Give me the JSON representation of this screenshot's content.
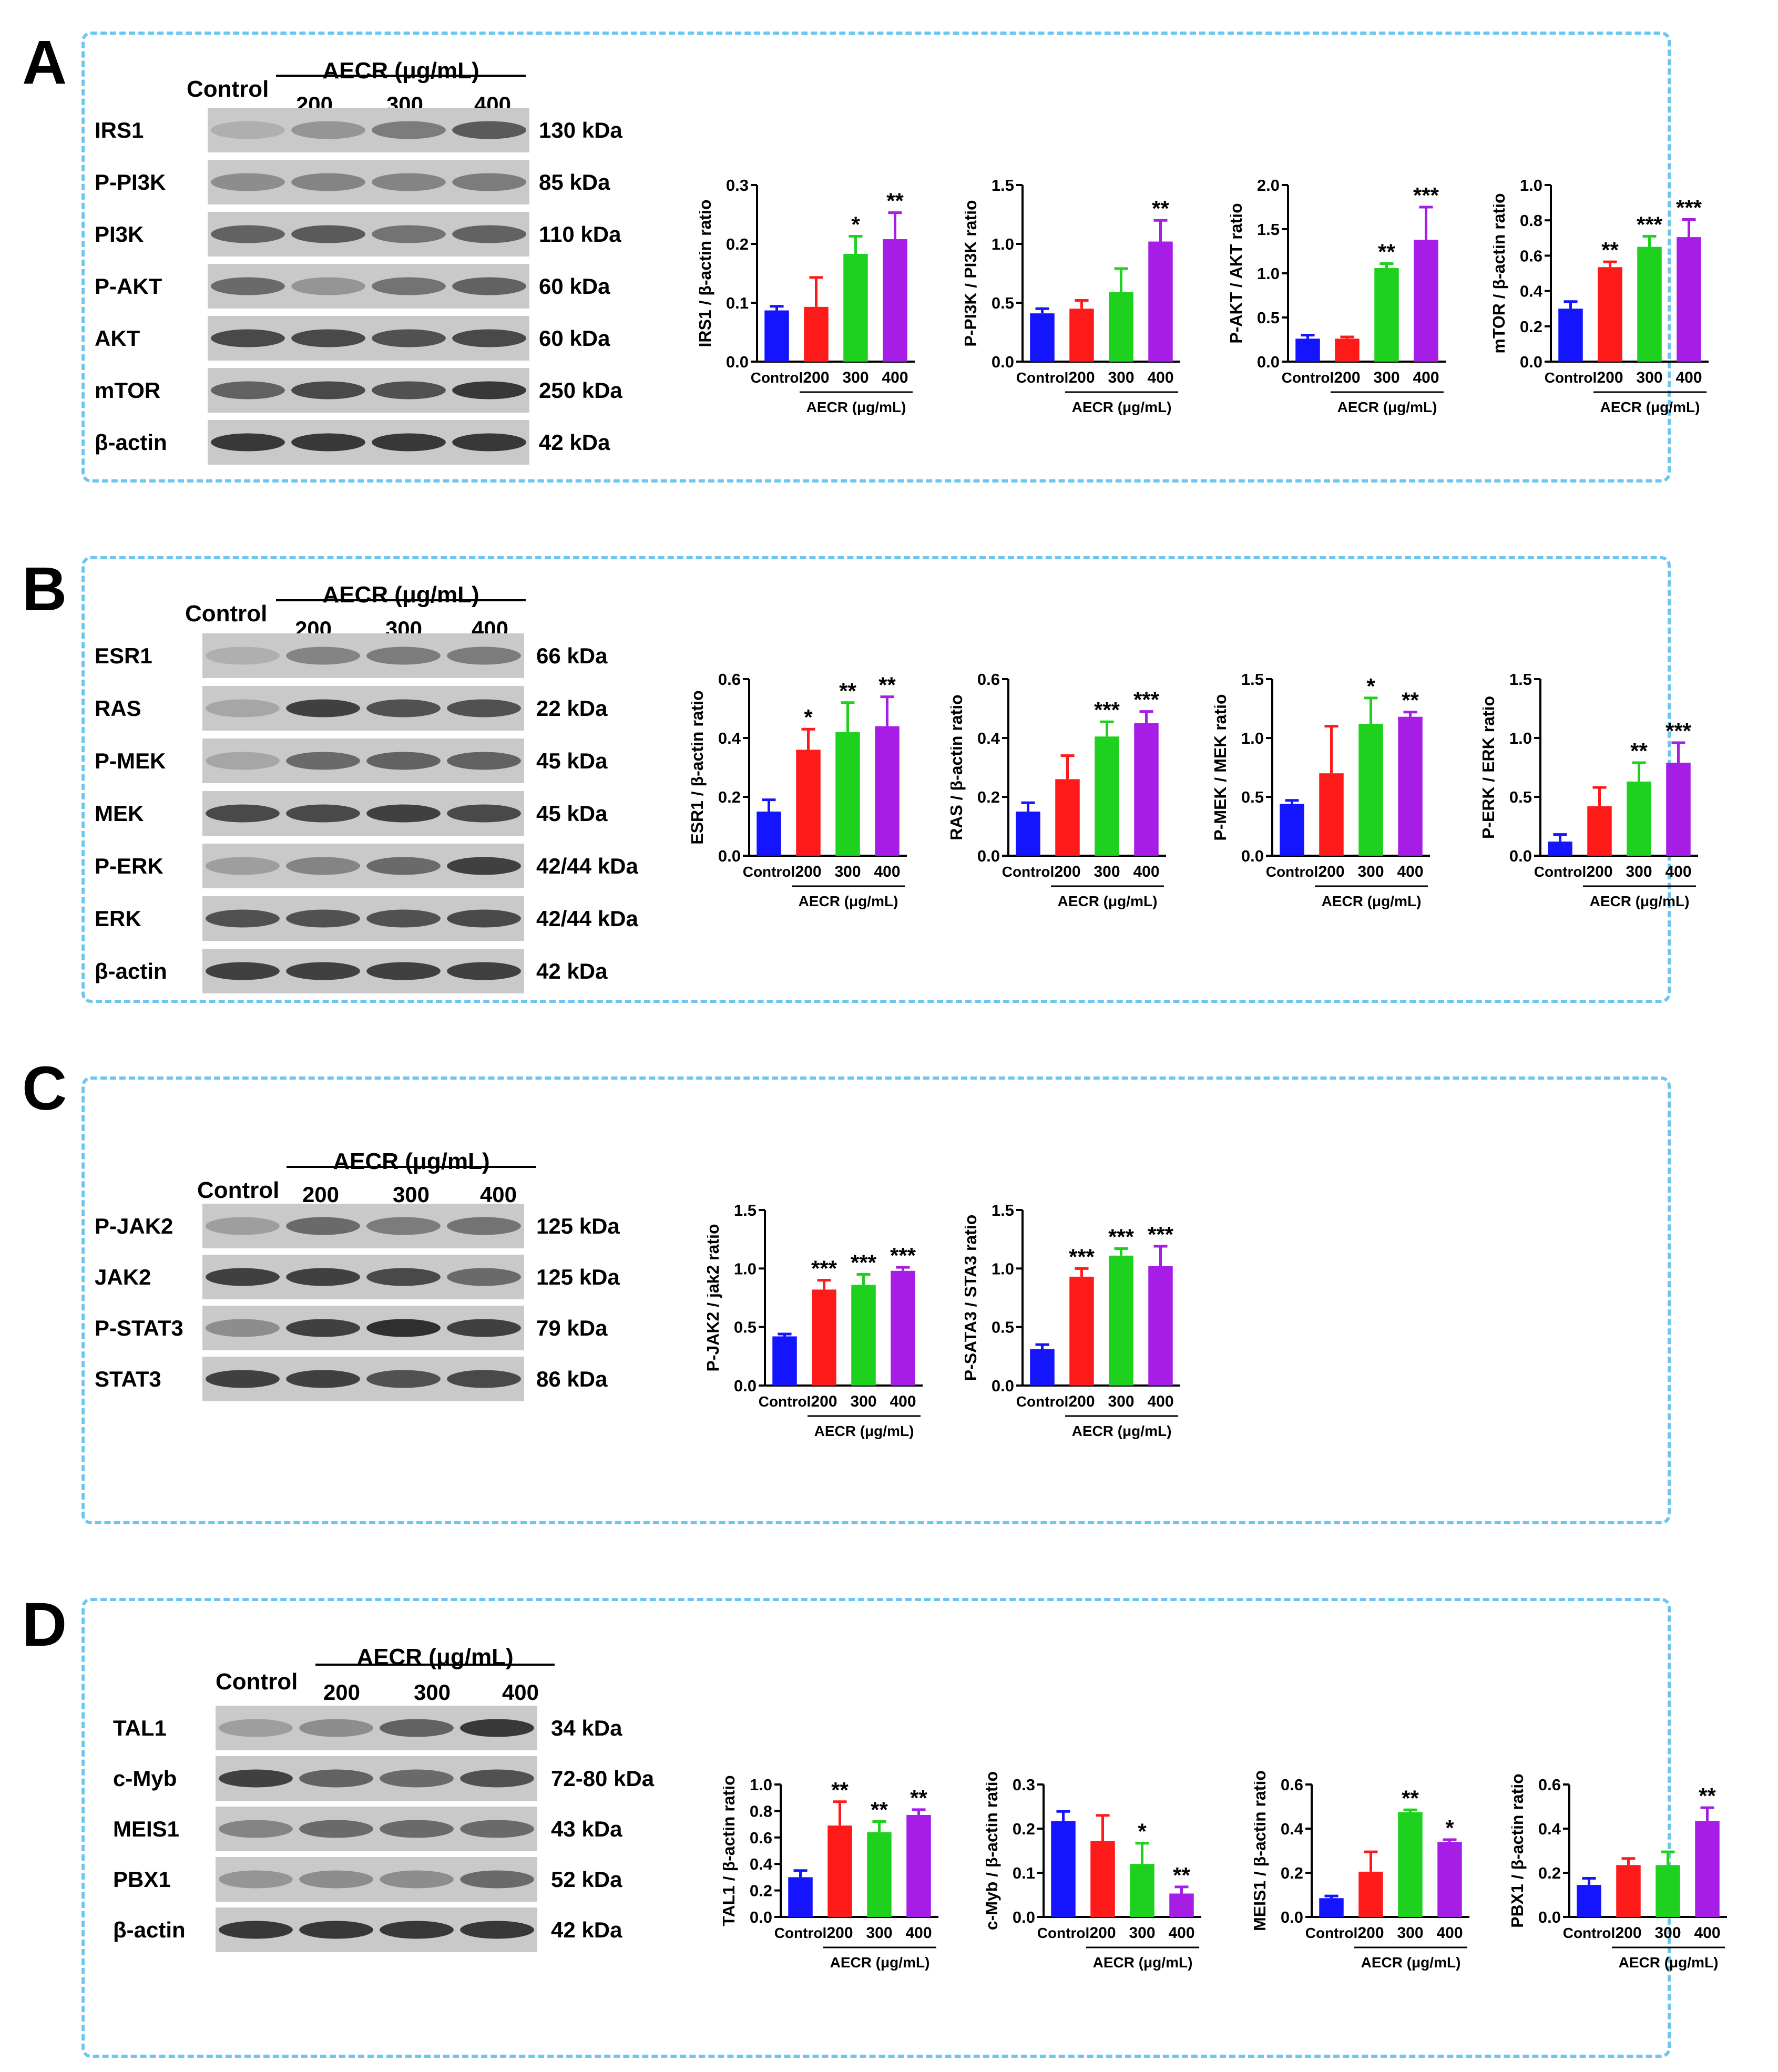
{
  "header": {
    "control": "Control",
    "aecr": "AECR (μg/mL)",
    "doses": [
      "200",
      "300",
      "400"
    ]
  },
  "colors": {
    "groups": [
      "#1414ff",
      "#ff1a1a",
      "#1ed11e",
      "#a61ee6"
    ],
    "panel_border": "#6cc6ef"
  },
  "panels": [
    {
      "letter": "A",
      "blots": [
        {
          "name": "IRS1",
          "kda": "130 kDa",
          "bands": [
            0.15,
            0.3,
            0.45,
            0.65
          ]
        },
        {
          "name": "P-PI3K",
          "kda": "85 kDa",
          "bands": [
            0.35,
            0.4,
            0.4,
            0.45
          ]
        },
        {
          "name": "PI3K",
          "kda": "110 kDa",
          "bands": [
            0.6,
            0.65,
            0.5,
            0.6
          ]
        },
        {
          "name": "P-AKT",
          "kda": "60 kDa",
          "bands": [
            0.55,
            0.3,
            0.5,
            0.6
          ]
        },
        {
          "name": "AKT",
          "kda": "60 kDa",
          "bands": [
            0.75,
            0.75,
            0.7,
            0.75
          ]
        },
        {
          "name": "mTOR",
          "kda": "250 kDa",
          "bands": [
            0.6,
            0.75,
            0.7,
            0.85
          ]
        },
        {
          "name": "β-actin",
          "kda": "42 kDa",
          "bands": [
            0.85,
            0.85,
            0.85,
            0.85
          ]
        }
      ]
    },
    {
      "letter": "B",
      "blots": [
        {
          "name": "ESR1",
          "kda": "66 kDa",
          "bands": [
            0.15,
            0.4,
            0.45,
            0.45
          ]
        },
        {
          "name": "RAS",
          "kda": "22 kDa",
          "bands": [
            0.2,
            0.8,
            0.7,
            0.7
          ]
        },
        {
          "name": "P-MEK",
          "kda": "45 kDa",
          "bands": [
            0.2,
            0.55,
            0.6,
            0.6
          ]
        },
        {
          "name": "MEK",
          "kda": "45 kDa",
          "bands": [
            0.75,
            0.75,
            0.8,
            0.75
          ]
        },
        {
          "name": "P-ERK",
          "kda": "42/44 kDa",
          "bands": [
            0.25,
            0.4,
            0.55,
            0.8
          ]
        },
        {
          "name": "ERK",
          "kda": "42/44 kDa",
          "bands": [
            0.7,
            0.7,
            0.7,
            0.75
          ]
        },
        {
          "name": "β-actin",
          "kda": "42 kDa",
          "bands": [
            0.8,
            0.8,
            0.8,
            0.8
          ]
        }
      ]
    },
    {
      "letter": "C",
      "blots": [
        {
          "name": "P-JAK2",
          "kda": "125 kDa",
          "bands": [
            0.25,
            0.55,
            0.45,
            0.5
          ]
        },
        {
          "name": "JAK2",
          "kda": "125 kDa",
          "bands": [
            0.8,
            0.8,
            0.75,
            0.55
          ]
        },
        {
          "name": "P-STAT3",
          "kda": "79 kDa",
          "bands": [
            0.35,
            0.8,
            0.9,
            0.8
          ]
        },
        {
          "name": "STAT3",
          "kda": "86 kDa",
          "bands": [
            0.8,
            0.8,
            0.7,
            0.75
          ]
        }
      ]
    },
    {
      "letter": "D",
      "blots": [
        {
          "name": "TAL1",
          "kda": "34 kDa",
          "bands": [
            0.25,
            0.35,
            0.6,
            0.85
          ]
        },
        {
          "name": "c-Myb",
          "kda": "72-80 kDa",
          "bands": [
            0.8,
            0.6,
            0.55,
            0.7
          ]
        },
        {
          "name": "MEIS1",
          "kda": "43 kDa",
          "bands": [
            0.4,
            0.55,
            0.55,
            0.55
          ]
        },
        {
          "name": "PBX1",
          "kda": "52 kDa",
          "bands": [
            0.3,
            0.35,
            0.35,
            0.55
          ]
        },
        {
          "name": "β-actin",
          "kda": "42 kDa",
          "bands": [
            0.85,
            0.85,
            0.85,
            0.85
          ]
        }
      ]
    }
  ],
  "chart_data": [
    {
      "type": "bar",
      "panel": "A",
      "categories": [
        "Control",
        "200",
        "300",
        "400"
      ],
      "group_label": "AECR (μg/mL)",
      "ylabel": "IRS1 / β-actin ratio",
      "ylim": [
        0,
        0.3
      ],
      "yticks": [
        "0.0",
        "0.1",
        "0.2",
        "0.3"
      ],
      "values": [
        0.087,
        0.093,
        0.183,
        0.208
      ],
      "errors": [
        0.007,
        0.05,
        0.03,
        0.045
      ],
      "significance": [
        "",
        "",
        "*",
        "**"
      ]
    },
    {
      "type": "bar",
      "panel": "A",
      "categories": [
        "Control",
        "200",
        "300",
        "400"
      ],
      "group_label": "AECR (μg/mL)",
      "ylabel": "P-PI3K / PI3K ratio",
      "ylim": [
        0,
        1.5
      ],
      "yticks": [
        "0.0",
        "0.5",
        "1.0",
        "1.5"
      ],
      "values": [
        0.41,
        0.45,
        0.59,
        1.02
      ],
      "errors": [
        0.04,
        0.07,
        0.2,
        0.18
      ],
      "significance": [
        "",
        "",
        "",
        "**"
      ]
    },
    {
      "type": "bar",
      "panel": "A",
      "categories": [
        "Control",
        "200",
        "300",
        "400"
      ],
      "group_label": "AECR (μg/mL)",
      "ylabel": "P-AKT / AKT ratio",
      "ylim": [
        0,
        2.0
      ],
      "yticks": [
        "0.0",
        "0.5",
        "1.0",
        "1.5",
        "2.0"
      ],
      "values": [
        0.26,
        0.26,
        1.06,
        1.38
      ],
      "errors": [
        0.04,
        0.02,
        0.05,
        0.37
      ],
      "significance": [
        "",
        "",
        "**",
        "***"
      ]
    },
    {
      "type": "bar",
      "panel": "A",
      "categories": [
        "Control",
        "200",
        "300",
        "400"
      ],
      "group_label": "AECR (μg/mL)",
      "ylabel": "mTOR / β-actin ratio",
      "ylim": [
        0,
        1.0
      ],
      "yticks": [
        "0.0",
        "0.2",
        "0.4",
        "0.6",
        "0.8",
        "1.0"
      ],
      "values": [
        0.3,
        0.535,
        0.65,
        0.705
      ],
      "errors": [
        0.04,
        0.03,
        0.06,
        0.1
      ],
      "significance": [
        "",
        "**",
        "***",
        "***"
      ]
    },
    {
      "type": "bar",
      "panel": "B",
      "categories": [
        "Control",
        "200",
        "300",
        "400"
      ],
      "group_label": "AECR (μg/mL)",
      "ylabel": "ESR1 / β-actin ratio",
      "ylim": [
        0,
        0.6
      ],
      "yticks": [
        "0.0",
        "0.2",
        "0.4",
        "0.6"
      ],
      "values": [
        0.15,
        0.36,
        0.42,
        0.44
      ],
      "errors": [
        0.04,
        0.07,
        0.1,
        0.1
      ],
      "significance": [
        "",
        "*",
        "**",
        "**"
      ]
    },
    {
      "type": "bar",
      "panel": "B",
      "categories": [
        "Control",
        "200",
        "300",
        "400"
      ],
      "group_label": "AECR (μg/mL)",
      "ylabel": "RAS / β-actin ratio",
      "ylim": [
        0,
        0.6
      ],
      "yticks": [
        "0.0",
        "0.2",
        "0.4",
        "0.6"
      ],
      "values": [
        0.15,
        0.26,
        0.405,
        0.45
      ],
      "errors": [
        0.03,
        0.08,
        0.05,
        0.04
      ],
      "significance": [
        "",
        "",
        "***",
        "***"
      ]
    },
    {
      "type": "bar",
      "panel": "B",
      "categories": [
        "Control",
        "200",
        "300",
        "400"
      ],
      "group_label": "AECR (μg/mL)",
      "ylabel": "P-MEK / MEK ratio",
      "ylim": [
        0,
        1.5
      ],
      "yticks": [
        "0.0",
        "0.5",
        "1.0",
        "1.5"
      ],
      "values": [
        0.44,
        0.7,
        1.12,
        1.18
      ],
      "errors": [
        0.03,
        0.4,
        0.22,
        0.04
      ],
      "significance": [
        "",
        "",
        "*",
        "**"
      ]
    },
    {
      "type": "bar",
      "panel": "B",
      "categories": [
        "Control",
        "200",
        "300",
        "400"
      ],
      "group_label": "AECR (μg/mL)",
      "ylabel": "P-ERK / ERK ratio",
      "ylim": [
        0,
        1.5
      ],
      "yticks": [
        "0.0",
        "0.5",
        "1.0",
        "1.5"
      ],
      "values": [
        0.12,
        0.42,
        0.63,
        0.79
      ],
      "errors": [
        0.06,
        0.16,
        0.16,
        0.17
      ],
      "significance": [
        "",
        "",
        "**",
        "***"
      ]
    },
    {
      "type": "bar",
      "panel": "C",
      "categories": [
        "Control",
        "200",
        "300",
        "400"
      ],
      "group_label": "AECR (μg/mL)",
      "ylabel": "P-JAK2 / jak2 ratio",
      "ylim": [
        0,
        1.5
      ],
      "yticks": [
        "0.0",
        "0.5",
        "1.0",
        "1.5"
      ],
      "values": [
        0.42,
        0.82,
        0.86,
        0.98
      ],
      "errors": [
        0.02,
        0.08,
        0.09,
        0.03
      ],
      "significance": [
        "",
        "***",
        "***",
        "***"
      ]
    },
    {
      "type": "bar",
      "panel": "C",
      "categories": [
        "Control",
        "200",
        "300",
        "400"
      ],
      "group_label": "AECR (μg/mL)",
      "ylabel": "P-SATA3 / STA3 ratio",
      "ylim": [
        0,
        1.5
      ],
      "yticks": [
        "0.0",
        "0.5",
        "1.0",
        "1.5"
      ],
      "values": [
        0.31,
        0.93,
        1.11,
        1.02
      ],
      "errors": [
        0.04,
        0.07,
        0.06,
        0.17
      ],
      "significance": [
        "",
        "***",
        "***",
        "***"
      ]
    },
    {
      "type": "bar",
      "panel": "D",
      "categories": [
        "Control",
        "200",
        "300",
        "400"
      ],
      "group_label": "AECR (μg/mL)",
      "ylabel": "TAL1 / β-actin ratio",
      "ylim": [
        0,
        1.0
      ],
      "yticks": [
        "0.0",
        "0.2",
        "0.4",
        "0.6",
        "0.8",
        "1.0"
      ],
      "values": [
        0.3,
        0.69,
        0.64,
        0.77
      ],
      "errors": [
        0.05,
        0.18,
        0.08,
        0.04
      ],
      "significance": [
        "",
        "**",
        "**",
        "**"
      ]
    },
    {
      "type": "bar",
      "panel": "D",
      "categories": [
        "Control",
        "200",
        "300",
        "400"
      ],
      "group_label": "AECR (μg/mL)",
      "ylabel": "c-Myb / β-actin ratio",
      "ylim": [
        0,
        0.3
      ],
      "yticks": [
        "0.0",
        "0.1",
        "0.2",
        "0.3"
      ],
      "values": [
        0.217,
        0.172,
        0.12,
        0.053
      ],
      "errors": [
        0.022,
        0.058,
        0.047,
        0.015
      ],
      "significance": [
        "",
        "",
        "*",
        "**"
      ]
    },
    {
      "type": "bar",
      "panel": "D",
      "categories": [
        "Control",
        "200",
        "300",
        "400"
      ],
      "group_label": "AECR (μg/mL)",
      "ylabel": "MEIS1 / β-actin ratio",
      "ylim": [
        0,
        0.6
      ],
      "yticks": [
        "0.0",
        "0.2",
        "0.4",
        "0.6"
      ],
      "values": [
        0.085,
        0.205,
        0.475,
        0.34
      ],
      "errors": [
        0.01,
        0.09,
        0.01,
        0.01
      ],
      "significance": [
        "",
        "",
        "**",
        "*"
      ]
    },
    {
      "type": "bar",
      "panel": "D",
      "categories": [
        "Control",
        "200",
        "300",
        "400"
      ],
      "group_label": "AECR (μg/mL)",
      "ylabel": "PBX1 / β-actin ratio",
      "ylim": [
        0,
        0.6
      ],
      "yticks": [
        "0.0",
        "0.2",
        "0.4",
        "0.6"
      ],
      "values": [
        0.145,
        0.235,
        0.235,
        0.435
      ],
      "errors": [
        0.03,
        0.03,
        0.06,
        0.06
      ],
      "significance": [
        "",
        "",
        "",
        "**"
      ]
    }
  ]
}
